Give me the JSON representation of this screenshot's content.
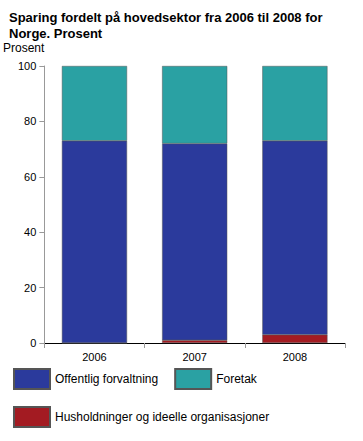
{
  "chart_data": {
    "type": "bar",
    "title": "Sparing fordelt på hovedsektor fra 2006 til 2008 for Norge. Prosent",
    "ylabel": "Prosent",
    "categories": [
      "2006",
      "2007",
      "2008"
    ],
    "series": [
      {
        "name": "Offentlig forvaltning",
        "color": "#2b3a9c",
        "values": [
          73,
          71,
          70
        ]
      },
      {
        "name": "Foretak",
        "color": "#2aa1a3",
        "values": [
          27,
          28,
          27
        ]
      },
      {
        "name": "Husholdninger og ideelle organisasjoner",
        "color": "#a31b22",
        "values": [
          0,
          1,
          3
        ]
      }
    ],
    "stacked": true,
    "ylim": [
      0,
      100
    ],
    "yticks": [
      0,
      20,
      40,
      60,
      80,
      100
    ],
    "grid": false,
    "legend": "bottom"
  }
}
